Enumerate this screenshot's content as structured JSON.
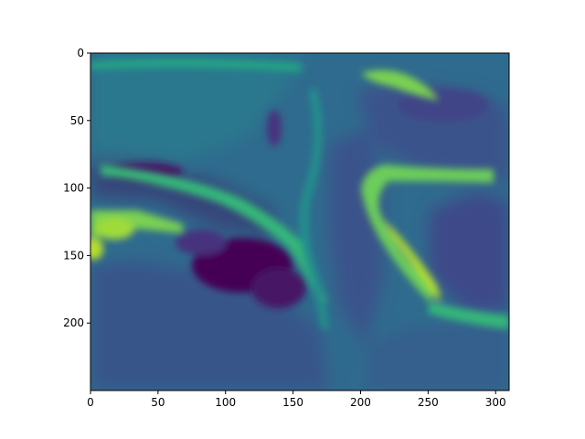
{
  "chart_data": {
    "type": "heatmap",
    "colormap": "viridis",
    "grid": false,
    "legend": "none",
    "xlim": [
      0,
      310
    ],
    "ylim": [
      250,
      0
    ],
    "x_ticks": [
      0,
      50,
      100,
      150,
      200,
      250,
      300
    ],
    "y_ticks": [
      0,
      50,
      100,
      150,
      200
    ],
    "x_tick_labels": [
      "0",
      "50",
      "100",
      "150",
      "200",
      "250",
      "300"
    ],
    "y_tick_labels": [
      "0",
      "50",
      "100",
      "150",
      "200"
    ],
    "image_shape": [
      250,
      310
    ],
    "features": [
      {
        "name": "dark-low-region",
        "x": 110,
        "y": 160,
        "level": 0.05
      },
      {
        "name": "dark-low-region",
        "x": 40,
        "y": 88,
        "level": 0.1
      },
      {
        "name": "bright-band",
        "x": 0,
        "y": 143,
        "level": 0.9
      },
      {
        "name": "bright-band",
        "x": 25,
        "y": 125,
        "level": 0.75
      },
      {
        "name": "bright-band",
        "x": 250,
        "y": 170,
        "level": 0.85
      },
      {
        "name": "bright-band",
        "x": 205,
        "y": 120,
        "level": 0.75
      },
      {
        "name": "bright-band",
        "x": 230,
        "y": 25,
        "level": 0.7
      },
      {
        "name": "upper-right-low",
        "x": 270,
        "y": 55,
        "level": 0.2
      },
      {
        "name": "right-low",
        "x": 300,
        "y": 150,
        "level": 0.2
      }
    ]
  }
}
